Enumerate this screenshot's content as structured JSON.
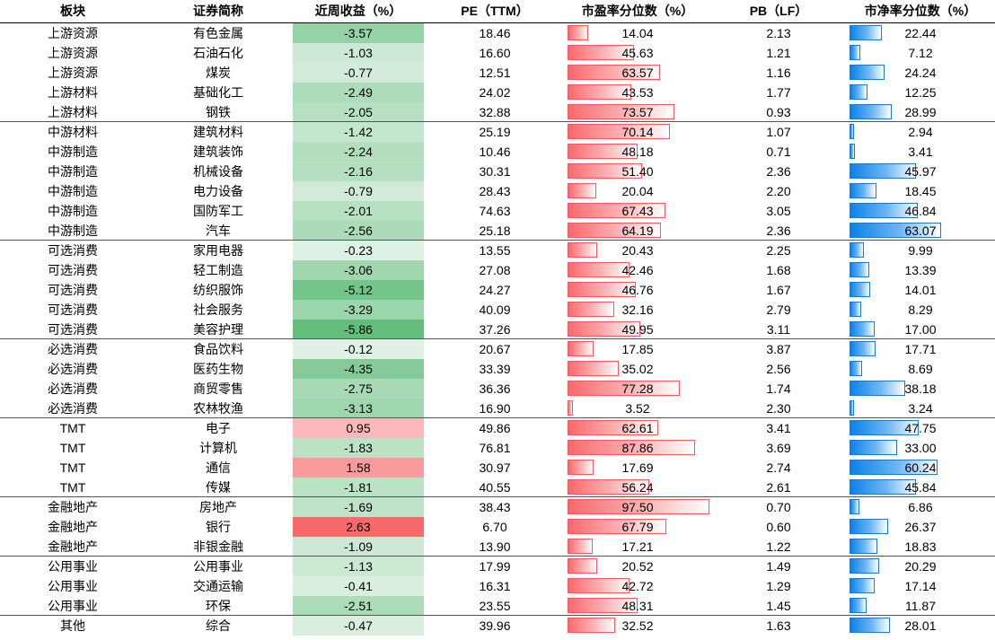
{
  "headers": {
    "sector": "板块",
    "name": "证券简称",
    "weekly_return": "近周收益（%）",
    "pe": "PE（TTM）",
    "pe_pct": "市盈率分位数（%）",
    "pb": "PB（LF）",
    "pb_pct": "市净率分位数（%）"
  },
  "colors": {
    "positive_return": "#f8696b",
    "negative_return": "#63be7b",
    "pe_bar": "#f8696b",
    "pb_bar": "#0a82e8"
  },
  "rows": [
    {
      "sector": "上游资源",
      "name": "有色金属",
      "ret": "-3.57",
      "pe": "18.46",
      "pe_pct": "14.04",
      "pb": "2.13",
      "pb_pct": "22.44"
    },
    {
      "sector": "上游资源",
      "name": "石油石化",
      "ret": "-1.03",
      "pe": "16.60",
      "pe_pct": "45.63",
      "pb": "1.21",
      "pb_pct": "7.12"
    },
    {
      "sector": "上游资源",
      "name": "煤炭",
      "ret": "-0.77",
      "pe": "12.51",
      "pe_pct": "63.57",
      "pb": "1.16",
      "pb_pct": "24.24"
    },
    {
      "sector": "上游材料",
      "name": "基础化工",
      "ret": "-2.49",
      "pe": "24.02",
      "pe_pct": "43.53",
      "pb": "1.77",
      "pb_pct": "12.25"
    },
    {
      "sector": "上游材料",
      "name": "钢铁",
      "ret": "-2.05",
      "pe": "32.88",
      "pe_pct": "73.57",
      "pb": "0.93",
      "pb_pct": "28.99"
    },
    {
      "sector": "中游材料",
      "name": "建筑材料",
      "ret": "-1.42",
      "pe": "25.19",
      "pe_pct": "70.14",
      "pb": "1.07",
      "pb_pct": "2.94"
    },
    {
      "sector": "中游制造",
      "name": "建筑装饰",
      "ret": "-2.24",
      "pe": "10.46",
      "pe_pct": "48.18",
      "pb": "0.71",
      "pb_pct": "3.41"
    },
    {
      "sector": "中游制造",
      "name": "机械设备",
      "ret": "-2.16",
      "pe": "30.31",
      "pe_pct": "51.40",
      "pb": "2.36",
      "pb_pct": "45.97"
    },
    {
      "sector": "中游制造",
      "name": "电力设备",
      "ret": "-0.79",
      "pe": "28.43",
      "pe_pct": "20.04",
      "pb": "2.20",
      "pb_pct": "18.45"
    },
    {
      "sector": "中游制造",
      "name": "国防军工",
      "ret": "-2.01",
      "pe": "74.63",
      "pe_pct": "67.43",
      "pb": "3.05",
      "pb_pct": "46.84"
    },
    {
      "sector": "中游制造",
      "name": "汽车",
      "ret": "-2.56",
      "pe": "25.18",
      "pe_pct": "64.19",
      "pb": "2.36",
      "pb_pct": "63.07"
    },
    {
      "sector": "可选消费",
      "name": "家用电器",
      "ret": "-0.23",
      "pe": "13.55",
      "pe_pct": "20.43",
      "pb": "2.25",
      "pb_pct": "9.99"
    },
    {
      "sector": "可选消费",
      "name": "轻工制造",
      "ret": "-3.06",
      "pe": "27.08",
      "pe_pct": "42.46",
      "pb": "1.68",
      "pb_pct": "13.39"
    },
    {
      "sector": "可选消费",
      "name": "纺织服饰",
      "ret": "-5.12",
      "pe": "24.27",
      "pe_pct": "46.76",
      "pb": "1.67",
      "pb_pct": "14.01"
    },
    {
      "sector": "可选消费",
      "name": "社会服务",
      "ret": "-3.29",
      "pe": "40.09",
      "pe_pct": "32.16",
      "pb": "2.79",
      "pb_pct": "8.29"
    },
    {
      "sector": "可选消费",
      "name": "美容护理",
      "ret": "-5.86",
      "pe": "37.26",
      "pe_pct": "49.95",
      "pb": "3.11",
      "pb_pct": "17.00"
    },
    {
      "sector": "必选消费",
      "name": "食品饮料",
      "ret": "-0.12",
      "pe": "20.67",
      "pe_pct": "17.85",
      "pb": "3.87",
      "pb_pct": "17.71"
    },
    {
      "sector": "必选消费",
      "name": "医药生物",
      "ret": "-4.35",
      "pe": "33.39",
      "pe_pct": "35.02",
      "pb": "2.56",
      "pb_pct": "8.69"
    },
    {
      "sector": "必选消费",
      "name": "商贸零售",
      "ret": "-2.75",
      "pe": "36.36",
      "pe_pct": "77.28",
      "pb": "1.74",
      "pb_pct": "38.18"
    },
    {
      "sector": "必选消费",
      "name": "农林牧渔",
      "ret": "-3.13",
      "pe": "16.90",
      "pe_pct": "3.52",
      "pb": "2.30",
      "pb_pct": "3.24"
    },
    {
      "sector": "TMT",
      "name": "电子",
      "ret": "0.95",
      "pe": "49.86",
      "pe_pct": "62.61",
      "pb": "3.41",
      "pb_pct": "47.75"
    },
    {
      "sector": "TMT",
      "name": "计算机",
      "ret": "-1.83",
      "pe": "76.81",
      "pe_pct": "87.86",
      "pb": "3.69",
      "pb_pct": "33.00"
    },
    {
      "sector": "TMT",
      "name": "通信",
      "ret": "1.58",
      "pe": "30.97",
      "pe_pct": "17.69",
      "pb": "2.74",
      "pb_pct": "60.24"
    },
    {
      "sector": "TMT",
      "name": "传媒",
      "ret": "-1.81",
      "pe": "40.55",
      "pe_pct": "56.24",
      "pb": "2.61",
      "pb_pct": "45.84"
    },
    {
      "sector": "金融地产",
      "name": "房地产",
      "ret": "-1.69",
      "pe": "38.43",
      "pe_pct": "97.50",
      "pb": "0.70",
      "pb_pct": "6.86"
    },
    {
      "sector": "金融地产",
      "name": "银行",
      "ret": "2.63",
      "pe": "6.70",
      "pe_pct": "67.79",
      "pb": "0.60",
      "pb_pct": "26.37"
    },
    {
      "sector": "金融地产",
      "name": "非银金融",
      "ret": "-1.09",
      "pe": "13.90",
      "pe_pct": "17.21",
      "pb": "1.22",
      "pb_pct": "18.83"
    },
    {
      "sector": "公用事业",
      "name": "公用事业",
      "ret": "-1.13",
      "pe": "17.99",
      "pe_pct": "20.52",
      "pb": "1.49",
      "pb_pct": "20.29"
    },
    {
      "sector": "公用事业",
      "name": "交通运输",
      "ret": "-0.41",
      "pe": "16.31",
      "pe_pct": "42.72",
      "pb": "1.29",
      "pb_pct": "17.14"
    },
    {
      "sector": "公用事业",
      "name": "环保",
      "ret": "-2.51",
      "pe": "23.55",
      "pe_pct": "48.31",
      "pb": "1.45",
      "pb_pct": "11.87"
    },
    {
      "sector": "其他",
      "name": "综合",
      "ret": "-0.47",
      "pe": "39.96",
      "pe_pct": "32.52",
      "pb": "1.63",
      "pb_pct": "28.01"
    }
  ]
}
